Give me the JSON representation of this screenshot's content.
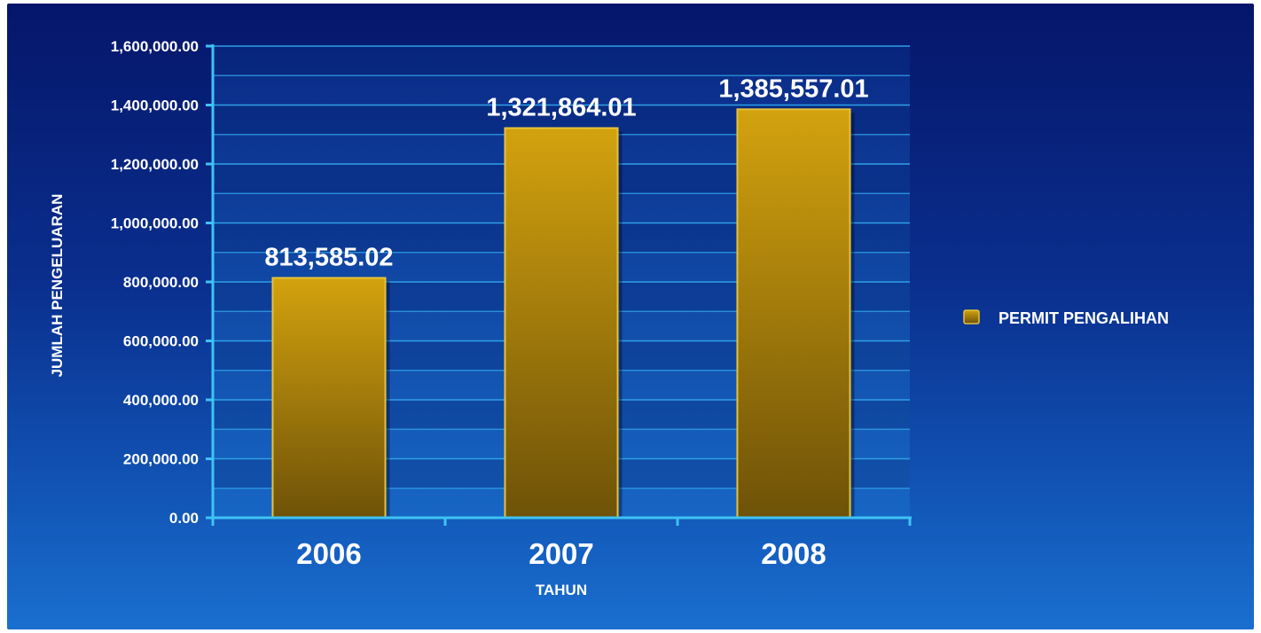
{
  "chart_data": {
    "type": "bar",
    "categories": [
      "2006",
      "2007",
      "2008"
    ],
    "series": [
      {
        "name": "PERMIT PENGALIHAN",
        "values": [
          813585.02,
          1321864.01,
          1385557.01
        ],
        "value_labels": [
          "813,585.02",
          "1,321,864.01",
          "1,385,557.01"
        ],
        "color": "#c9980c"
      }
    ],
    "xlabel": "TAHUN",
    "ylabel": "JUMLAH PENGELUARAN",
    "ylim": [
      0,
      1600000
    ],
    "yticks": [
      0,
      200000,
      400000,
      600000,
      800000,
      1000000,
      1200000,
      1400000,
      1600000
    ],
    "ytick_labels": [
      "0.00",
      "200,000.00",
      "400,000.00",
      "600,000.00",
      "800,000.00",
      "1,000,000.00",
      "1,200,000.00",
      "1,400,000.00",
      "1,600,000.00"
    ],
    "grid": true,
    "legend_position": "right",
    "colors": {
      "background_top": "#05166a",
      "background_bottom": "#1a6fcf",
      "axis": "#3ec3f5",
      "grid": "#2f9fe6",
      "bar_top": "#d3a20e",
      "bar_bottom": "#6e5208",
      "bar_border": "#e6c23a"
    }
  }
}
